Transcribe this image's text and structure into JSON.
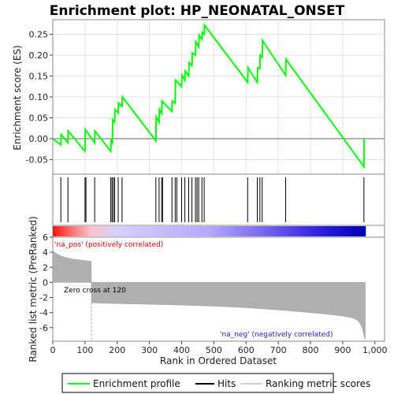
{
  "title": "Enrichment plot: HP_NEONATAL_ONSET",
  "colors": {
    "profile": "#00ff00",
    "hits": "#000000",
    "metric_fill": "#b0b0b0",
    "pos_text": "#e00000",
    "neg_text": "#2020c0",
    "zero_line": "#000000"
  },
  "chart_data": [
    {
      "type": "line",
      "name": "enrichment-profile",
      "ylabel": "Enrichment score (ES)",
      "ylim": [
        -0.085,
        0.285
      ],
      "yticks": [
        -0.05,
        0.0,
        0.05,
        0.1,
        0.15,
        0.2,
        0.25
      ],
      "ytick_labels": [
        "-0.05",
        "0.00",
        "0.05",
        "0.10",
        "0.15",
        "0.20",
        "0.25"
      ],
      "xlim": [
        0,
        1000
      ],
      "grid": true,
      "series": [
        {
          "x": [
            0,
            25,
            26,
            47,
            48,
            100,
            101,
            130,
            131,
            180,
            181,
            185,
            186,
            192,
            193,
            203,
            204,
            215,
            216,
            320,
            321,
            330,
            331,
            338,
            339,
            370,
            371,
            380,
            381,
            400,
            401,
            410,
            411,
            422,
            423,
            432,
            433,
            443,
            444,
            453,
            454,
            463,
            464,
            470,
            471,
            605,
            606,
            635,
            636,
            643,
            644,
            650,
            651,
            723,
            724,
            966,
            967
          ],
          "y": [
            0.0,
            -0.015,
            0.01,
            -0.01,
            0.018,
            -0.03,
            0.022,
            -0.01,
            0.018,
            -0.03,
            -0.005,
            -0.01,
            0.045,
            0.04,
            0.07,
            0.062,
            0.085,
            0.078,
            0.1,
            -0.005,
            0.052,
            0.04,
            0.07,
            0.06,
            0.09,
            0.065,
            0.09,
            0.085,
            0.14,
            0.125,
            0.152,
            0.14,
            0.162,
            0.15,
            0.182,
            0.175,
            0.205,
            0.2,
            0.232,
            0.22,
            0.248,
            0.238,
            0.255,
            0.25,
            0.272,
            0.135,
            0.17,
            0.135,
            0.17,
            0.168,
            0.2,
            0.195,
            0.235,
            0.152,
            0.19,
            -0.067,
            0.0
          ]
        }
      ]
    },
    {
      "type": "scatter",
      "name": "hits",
      "ylabel": "",
      "xlim": [
        0,
        1000
      ],
      "x": [
        25,
        47,
        100,
        103,
        130,
        180,
        184,
        188,
        192,
        203,
        215,
        320,
        330,
        338,
        341,
        370,
        380,
        385,
        400,
        410,
        422,
        432,
        443,
        448,
        453,
        463,
        470,
        605,
        635,
        643,
        650,
        723,
        966
      ]
    },
    {
      "type": "area",
      "name": "ranked-list-metric",
      "xlabel": "Rank in Ordered Dataset",
      "ylabel": "Ranked list metric (PreRanked)",
      "ylim": [
        -7.8,
        6.0
      ],
      "yticks": [
        -6,
        -4,
        -2,
        0,
        2,
        4,
        6
      ],
      "ytick_labels": [
        "-6",
        "-4",
        "-2",
        "0",
        "2",
        "4",
        "6"
      ],
      "xlim": [
        0,
        1030
      ],
      "xticks": [
        0,
        100,
        200,
        300,
        400,
        500,
        600,
        700,
        800,
        900,
        1000
      ],
      "xtick_labels": [
        "0",
        "100",
        "200",
        "300",
        "400",
        "500",
        "600",
        "700",
        "800",
        "900",
        "1,000"
      ],
      "x": [
        0,
        5,
        20,
        40,
        60,
        80,
        100,
        119,
        120,
        121,
        150,
        200,
        300,
        400,
        500,
        600,
        700,
        800,
        850,
        900,
        930,
        945,
        955,
        962,
        967,
        970
      ],
      "y": [
        4.3,
        4.0,
        3.6,
        3.3,
        3.1,
        3.0,
        2.9,
        2.8,
        0.0,
        -2.7,
        -2.75,
        -2.8,
        -2.9,
        -3.0,
        -3.15,
        -3.35,
        -3.65,
        -4.0,
        -4.2,
        -4.45,
        -4.7,
        -5.0,
        -5.5,
        -6.2,
        -7.2,
        -7.6
      ]
    }
  ],
  "annotations": {
    "pos": "'na_pos' (positively correlated)",
    "neg": "'na_neg' (negatively correlated)",
    "zero_cross": "Zero cross at 120",
    "zero_cross_rank": 120
  },
  "legend": {
    "profile": "Enrichment profile",
    "hits": "Hits",
    "metric": "Ranking metric scores"
  }
}
